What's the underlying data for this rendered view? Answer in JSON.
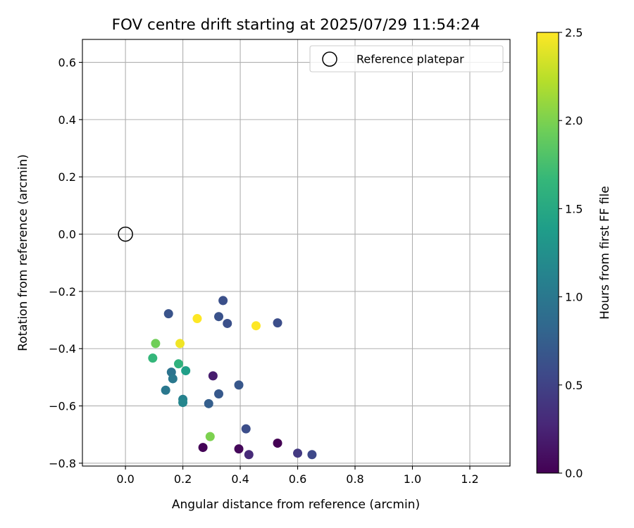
{
  "chart_data": {
    "type": "scatter",
    "title": "FOV centre drift starting at 2025/07/29 11:54:24",
    "xlabel": "Angular distance from reference (arcmin)",
    "ylabel": "Rotation from reference (arcmin)",
    "xlim": [
      -0.15,
      1.34
    ],
    "ylim": [
      -0.81,
      0.68
    ],
    "xticks": [
      0.0,
      0.2,
      0.4,
      0.6,
      0.8,
      1.0,
      1.2
    ],
    "xtick_labels": [
      "0.0",
      "0.2",
      "0.4",
      "0.6",
      "0.8",
      "1.0",
      "1.2"
    ],
    "yticks": [
      0.6,
      0.4,
      0.2,
      0.0,
      -0.2,
      -0.4,
      -0.6,
      -0.8
    ],
    "ytick_labels": [
      "0.6",
      "0.4",
      "0.2",
      "0.0",
      "−0.2",
      "−0.4",
      "−0.6",
      "−0.8"
    ],
    "grid": true,
    "legend": {
      "position": "top-right",
      "label": "Reference platepar"
    },
    "reference_point": {
      "x": 0.0,
      "y": 0.0
    },
    "colorbar": {
      "label": "Hours from first FF file",
      "colormap": "viridis",
      "range": [
        0.0,
        2.5
      ],
      "ticks": [
        0.0,
        0.5,
        1.0,
        1.5,
        2.0,
        2.5
      ],
      "tick_labels": [
        "0.0",
        "0.5",
        "1.0",
        "1.5",
        "2.0",
        "2.5"
      ],
      "stops": [
        "#440154",
        "#482878",
        "#3e4989",
        "#31688e",
        "#26828e",
        "#1f9e89",
        "#35b779",
        "#6ece58",
        "#b5de2b",
        "#fde725"
      ]
    },
    "points": [
      {
        "x": 0.53,
        "y": -0.73,
        "hours": 0.0
      },
      {
        "x": 0.27,
        "y": -0.745,
        "hours": 0.02
      },
      {
        "x": 0.395,
        "y": -0.75,
        "hours": 0.05
      },
      {
        "x": 0.305,
        "y": -0.495,
        "hours": 0.2
      },
      {
        "x": 0.43,
        "y": -0.77,
        "hours": 0.3
      },
      {
        "x": 0.6,
        "y": -0.765,
        "hours": 0.42
      },
      {
        "x": 0.65,
        "y": -0.77,
        "hours": 0.55
      },
      {
        "x": 0.42,
        "y": -0.68,
        "hours": 0.6
      },
      {
        "x": 0.34,
        "y": -0.232,
        "hours": 0.62
      },
      {
        "x": 0.325,
        "y": -0.288,
        "hours": 0.64
      },
      {
        "x": 0.355,
        "y": -0.312,
        "hours": 0.62
      },
      {
        "x": 0.53,
        "y": -0.31,
        "hours": 0.6
      },
      {
        "x": 0.15,
        "y": -0.278,
        "hours": 0.65
      },
      {
        "x": 0.395,
        "y": -0.527,
        "hours": 0.68
      },
      {
        "x": 0.325,
        "y": -0.558,
        "hours": 0.7
      },
      {
        "x": 0.29,
        "y": -0.592,
        "hours": 0.75
      },
      {
        "x": 0.16,
        "y": -0.482,
        "hours": 0.95
      },
      {
        "x": 0.165,
        "y": -0.505,
        "hours": 1.0
      },
      {
        "x": 0.14,
        "y": -0.545,
        "hours": 1.0
      },
      {
        "x": 0.2,
        "y": -0.577,
        "hours": 1.1
      },
      {
        "x": 0.2,
        "y": -0.588,
        "hours": 1.15
      },
      {
        "x": 0.21,
        "y": -0.477,
        "hours": 1.4
      },
      {
        "x": 0.185,
        "y": -0.453,
        "hours": 1.6
      },
      {
        "x": 0.095,
        "y": -0.433,
        "hours": 1.65
      },
      {
        "x": 0.105,
        "y": -0.382,
        "hours": 1.95
      },
      {
        "x": 0.295,
        "y": -0.707,
        "hours": 2.0
      },
      {
        "x": 0.19,
        "y": -0.382,
        "hours": 2.45
      },
      {
        "x": 0.25,
        "y": -0.295,
        "hours": 2.5
      },
      {
        "x": 0.455,
        "y": -0.32,
        "hours": 2.5
      }
    ]
  }
}
